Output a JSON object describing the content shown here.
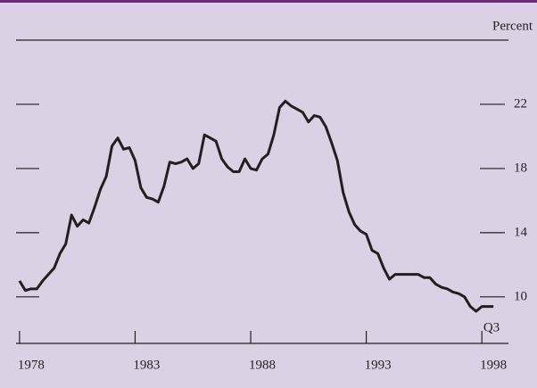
{
  "chart_data": {
    "type": "line",
    "y_label": "Percent",
    "annotation": "Q3",
    "x": [
      1978,
      1978.25,
      1978.5,
      1978.75,
      1979,
      1979.25,
      1979.5,
      1979.75,
      1980,
      1980.25,
      1980.5,
      1980.75,
      1981,
      1981.25,
      1981.5,
      1981.75,
      1982,
      1982.25,
      1982.5,
      1982.75,
      1983,
      1983.25,
      1983.5,
      1983.75,
      1984,
      1984.25,
      1984.5,
      1984.75,
      1985,
      1985.25,
      1985.5,
      1985.75,
      1986,
      1986.25,
      1986.5,
      1986.75,
      1987,
      1987.25,
      1987.5,
      1987.75,
      1988,
      1988.25,
      1988.5,
      1988.75,
      1989,
      1989.25,
      1989.5,
      1989.75,
      1990,
      1990.25,
      1990.5,
      1990.75,
      1991,
      1991.25,
      1991.5,
      1991.75,
      1992,
      1992.25,
      1992.5,
      1992.75,
      1993,
      1993.25,
      1993.5,
      1993.75,
      1994,
      1994.25,
      1994.5,
      1994.75,
      1995,
      1995.25,
      1995.5,
      1995.75,
      1996,
      1996.25,
      1996.5,
      1996.75,
      1997,
      1997.25,
      1997.5,
      1997.75,
      1998,
      1998.25,
      1998.5
    ],
    "series": [
      {
        "color": "#231f20",
        "values": [
          11.0,
          10.4,
          10.5,
          10.5,
          11.0,
          11.4,
          11.8,
          12.7,
          13.3,
          15.1,
          14.4,
          14.8,
          14.6,
          15.6,
          16.7,
          17.5,
          19.4,
          19.9,
          19.2,
          19.3,
          18.5,
          16.8,
          16.2,
          16.1,
          15.9,
          16.9,
          18.4,
          18.3,
          18.4,
          18.6,
          18.0,
          18.3,
          20.1,
          19.9,
          19.7,
          18.6,
          18.1,
          17.8,
          17.8,
          18.6,
          18.0,
          17.9,
          18.6,
          18.9,
          20.1,
          21.8,
          22.2,
          21.9,
          21.7,
          21.5,
          20.9,
          21.3,
          21.2,
          20.6,
          19.6,
          18.5,
          16.5,
          15.3,
          14.5,
          14.1,
          13.9,
          12.9,
          12.7,
          11.8,
          11.1,
          11.4,
          11.4,
          11.4,
          11.4,
          11.4,
          11.2,
          11.2,
          10.8,
          10.6,
          10.5,
          10.3,
          10.2,
          10.0,
          9.4,
          9.1,
          9.4,
          9.4,
          9.4
        ]
      }
    ],
    "xlim": [
      1977.85,
      1999.15
    ],
    "xticks": [
      1978,
      1983,
      1988,
      1993,
      1998
    ],
    "ylim": [
      7.1,
      26
    ],
    "yticks": [
      10,
      14,
      18,
      22
    ]
  }
}
